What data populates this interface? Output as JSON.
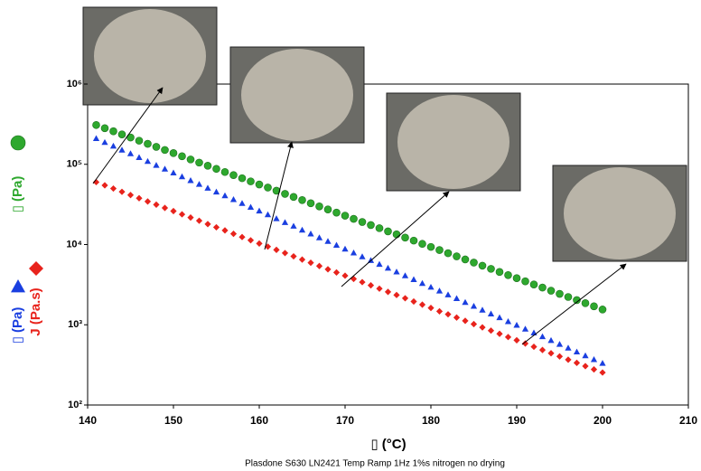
{
  "chart_data": {
    "type": "scatter",
    "xlabel": "▯ (°C)",
    "caption": "Plasdone S630 LN2421 Temp Ramp 1Hz 1%s  nitrogen no drying",
    "x": [
      141,
      142,
      143,
      144,
      145,
      146,
      147,
      148,
      149,
      150,
      151,
      152,
      153,
      154,
      155,
      156,
      157,
      158,
      159,
      160,
      161,
      162,
      163,
      164,
      165,
      166,
      167,
      168,
      169,
      170,
      171,
      172,
      173,
      174,
      175,
      176,
      177,
      178,
      179,
      180,
      181,
      182,
      183,
      184,
      185,
      186,
      187,
      188,
      189,
      190,
      191,
      192,
      193,
      194,
      195,
      196,
      197,
      198,
      199,
      200
    ],
    "series": [
      {
        "name": "▯ (Pa)",
        "color": "#2ea82e",
        "marker": "circle",
        "values": [
          309000,
          282000,
          258000,
          236000,
          216000,
          197000,
          180000,
          165000,
          151000,
          138000,
          126000,
          115000,
          105000,
          96000,
          87800,
          80200,
          73400,
          67100,
          61300,
          56100,
          51300,
          46900,
          42800,
          39200,
          35800,
          32700,
          29900,
          27400,
          25000,
          22900,
          20900,
          19100,
          17500,
          16000,
          14600,
          13400,
          12200,
          11200,
          10200,
          9340,
          8540,
          7800,
          7130,
          6520,
          5960,
          5450,
          4980,
          4550,
          4160,
          3810,
          3480,
          3180,
          2910,
          2660,
          2430,
          2220,
          2030,
          1860,
          1700,
          1550
        ]
      },
      {
        "name": "▯ (Pa)",
        "color": "#1a3fe0",
        "marker": "triangle",
        "values": [
          210000,
          188000,
          169000,
          151000,
          136000,
          122000,
          109000,
          97600,
          87500,
          78400,
          70300,
          63000,
          56500,
          50600,
          45400,
          40700,
          36500,
          32700,
          29300,
          26300,
          23600,
          21100,
          18900,
          17000,
          15200,
          13600,
          12200,
          11000,
          9830,
          8810,
          7900,
          7080,
          6350,
          5690,
          5100,
          4570,
          4100,
          3670,
          3290,
          2950,
          2650,
          2370,
          2130,
          1910,
          1710,
          1530,
          1370,
          1230,
          1100,
          990,
          887,
          795,
          713,
          639,
          573,
          514,
          460,
          413,
          370,
          332
        ]
      },
      {
        "name": "J (Pa.s)",
        "color": "#e8231c",
        "marker": "diamond",
        "values": [
          60000,
          54700,
          49900,
          45400,
          41400,
          37800,
          34400,
          31400,
          28600,
          26100,
          23800,
          21700,
          19800,
          18000,
          16400,
          15000,
          13600,
          12400,
          11300,
          10300,
          9420,
          8590,
          7830,
          7130,
          6500,
          5930,
          5400,
          4920,
          4490,
          4090,
          3730,
          3400,
          3100,
          2820,
          2570,
          2350,
          2140,
          1950,
          1780,
          1620,
          1470,
          1350,
          1230,
          1120,
          1020,
          928,
          846,
          771,
          703,
          641,
          584,
          532,
          485,
          442,
          403,
          367,
          335,
          305,
          278,
          254
        ]
      }
    ],
    "xlim": [
      140,
      210
    ],
    "xticks": [
      140,
      150,
      160,
      170,
      180,
      190,
      200,
      210
    ],
    "ylim": [
      100,
      1000000
    ],
    "log_y": true,
    "yticks": [
      {
        "value": 100,
        "label": "10²"
      },
      {
        "value": 1000,
        "label": "10³"
      },
      {
        "value": 10000,
        "label": "10⁴"
      },
      {
        "value": 100000,
        "label": "10⁵"
      },
      {
        "value": 1000000,
        "label": "10⁶"
      }
    ]
  }
}
